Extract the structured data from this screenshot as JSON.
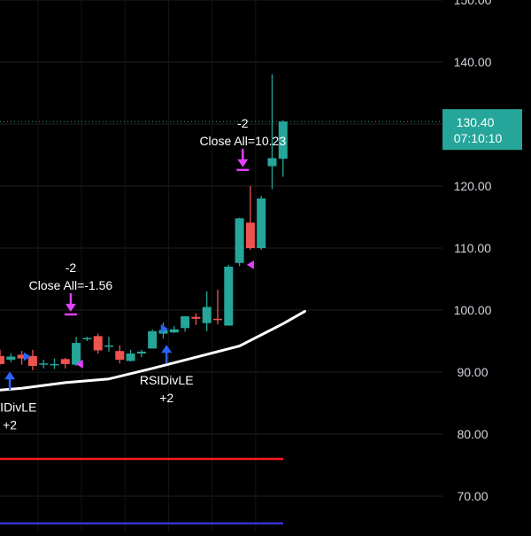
{
  "chart_data": {
    "type": "candlestick",
    "y_axis": {
      "position": "right",
      "ticks": [
        "150.00",
        "140.00",
        "130.00",
        "120.00",
        "110.00",
        "100.00",
        "90.00",
        "80.00",
        "70.00"
      ],
      "tick_values": [
        150,
        140,
        130,
        120,
        110,
        100,
        90,
        80,
        70
      ],
      "range": [
        64,
        151
      ]
    },
    "last_price": {
      "value": 130.4,
      "label": "130.40",
      "countdown": "07:10:10",
      "color": "#26a69a"
    },
    "colors": {
      "up": "#26a69a",
      "down": "#ef5350",
      "moving_average": "#ffffff",
      "entry_arrow": "#2962ff",
      "exit_arrow": "#e040fb",
      "red_level": "#ff1a1a",
      "blue_level": "#3333cc",
      "grid": "#1f1f1f"
    },
    "candles": [
      {
        "open": 92.6,
        "high": 93.6,
        "low": 91.2,
        "close": 91.3
      },
      {
        "open": 92.0,
        "high": 93.0,
        "low": 91.6,
        "close": 92.5
      },
      {
        "open": 92.8,
        "high": 93.4,
        "low": 91.2,
        "close": 92.2
      },
      {
        "open": 92.6,
        "high": 93.6,
        "low": 90.3,
        "close": 91.0
      },
      {
        "open": 91.3,
        "high": 92.0,
        "low": 90.6,
        "close": 91.4
      },
      {
        "open": 91.3,
        "high": 92.2,
        "low": 90.5,
        "close": 91.3
      },
      {
        "open": 92.1,
        "high": 92.3,
        "low": 90.6,
        "close": 91.3
      },
      {
        "open": 91.2,
        "high": 95.7,
        "low": 91.0,
        "close": 94.7
      },
      {
        "open": 95.3,
        "high": 95.7,
        "low": 95.0,
        "close": 95.5
      },
      {
        "open": 95.8,
        "high": 96.2,
        "low": 93.0,
        "close": 93.5
      },
      {
        "open": 94.3,
        "high": 95.7,
        "low": 93.3,
        "close": 94.3
      },
      {
        "open": 93.4,
        "high": 94.3,
        "low": 91.4,
        "close": 92.0
      },
      {
        "open": 91.8,
        "high": 93.6,
        "low": 91.7,
        "close": 93.0
      },
      {
        "open": 93.0,
        "high": 93.6,
        "low": 92.4,
        "close": 93.3
      },
      {
        "open": 93.8,
        "high": 96.9,
        "low": 93.8,
        "close": 96.6
      },
      {
        "open": 96.2,
        "high": 98.0,
        "low": 95.4,
        "close": 96.8
      },
      {
        "open": 96.4,
        "high": 97.4,
        "low": 96.3,
        "close": 96.9
      },
      {
        "open": 97.1,
        "high": 99.0,
        "low": 96.5,
        "close": 99.0
      },
      {
        "open": 98.9,
        "high": 99.5,
        "low": 97.6,
        "close": 98.6
      },
      {
        "open": 97.9,
        "high": 103.0,
        "low": 96.6,
        "close": 100.5
      },
      {
        "open": 98.6,
        "high": 103.3,
        "low": 97.7,
        "close": 98.5
      },
      {
        "open": 97.5,
        "high": 107.3,
        "low": 97.5,
        "close": 107.0
      },
      {
        "open": 107.6,
        "high": 114.9,
        "low": 107.1,
        "close": 114.8
      },
      {
        "open": 114.1,
        "high": 120.0,
        "low": 109.7,
        "close": 110.0
      },
      {
        "open": 110.0,
        "high": 118.4,
        "low": 109.7,
        "close": 118.0
      },
      {
        "open": 123.2,
        "high": 138.0,
        "low": 119.5,
        "close": 124.5
      },
      {
        "open": 124.4,
        "high": 130.6,
        "low": 121.5,
        "close": 130.4
      }
    ],
    "moving_average": {
      "values": [
        [
          -2,
          86.8
        ],
        [
          2,
          87.4
        ],
        [
          6,
          88.3
        ],
        [
          10,
          88.9
        ],
        [
          14,
          90.6
        ],
        [
          18,
          92.4
        ],
        [
          22,
          94.2
        ],
        [
          24,
          96.0
        ],
        [
          26,
          97.8
        ],
        [
          28,
          99.8
        ]
      ]
    },
    "horizontal_lines": [
      {
        "price": 76.0,
        "color": "#ff1a1a"
      },
      {
        "price": 65.6,
        "color": "#3333cc"
      }
    ],
    "signals": [
      {
        "type": "entry",
        "bar": 0.9,
        "price": 87.1,
        "label_line1": "RSIDivLE",
        "label_line2": "+2"
      },
      {
        "type": "entry",
        "bar": 15.3,
        "price": 91.4,
        "label_line1": "RSIDivLE",
        "label_line2": "+2"
      },
      {
        "type": "exit",
        "bar": 6.5,
        "price": 99.3,
        "label_line1": "-2",
        "label_line2": "Close All=-1.56"
      },
      {
        "type": "exit",
        "bar": 22.3,
        "price": 122.6,
        "label_line1": "-2",
        "label_line2": "Close All=10.23"
      }
    ],
    "markers": [
      {
        "bar": 2.5,
        "price": 92.5,
        "color": "#2962ff",
        "dir": "right"
      },
      {
        "bar": 7.3,
        "price": 91.3,
        "color": "#e040fb",
        "dir": "left"
      },
      {
        "bar": 15.1,
        "price": 97.0,
        "color": "#2962ff",
        "dir": "right"
      },
      {
        "bar": 23.0,
        "price": 107.3,
        "color": "#e040fb",
        "dir": "left"
      }
    ]
  }
}
